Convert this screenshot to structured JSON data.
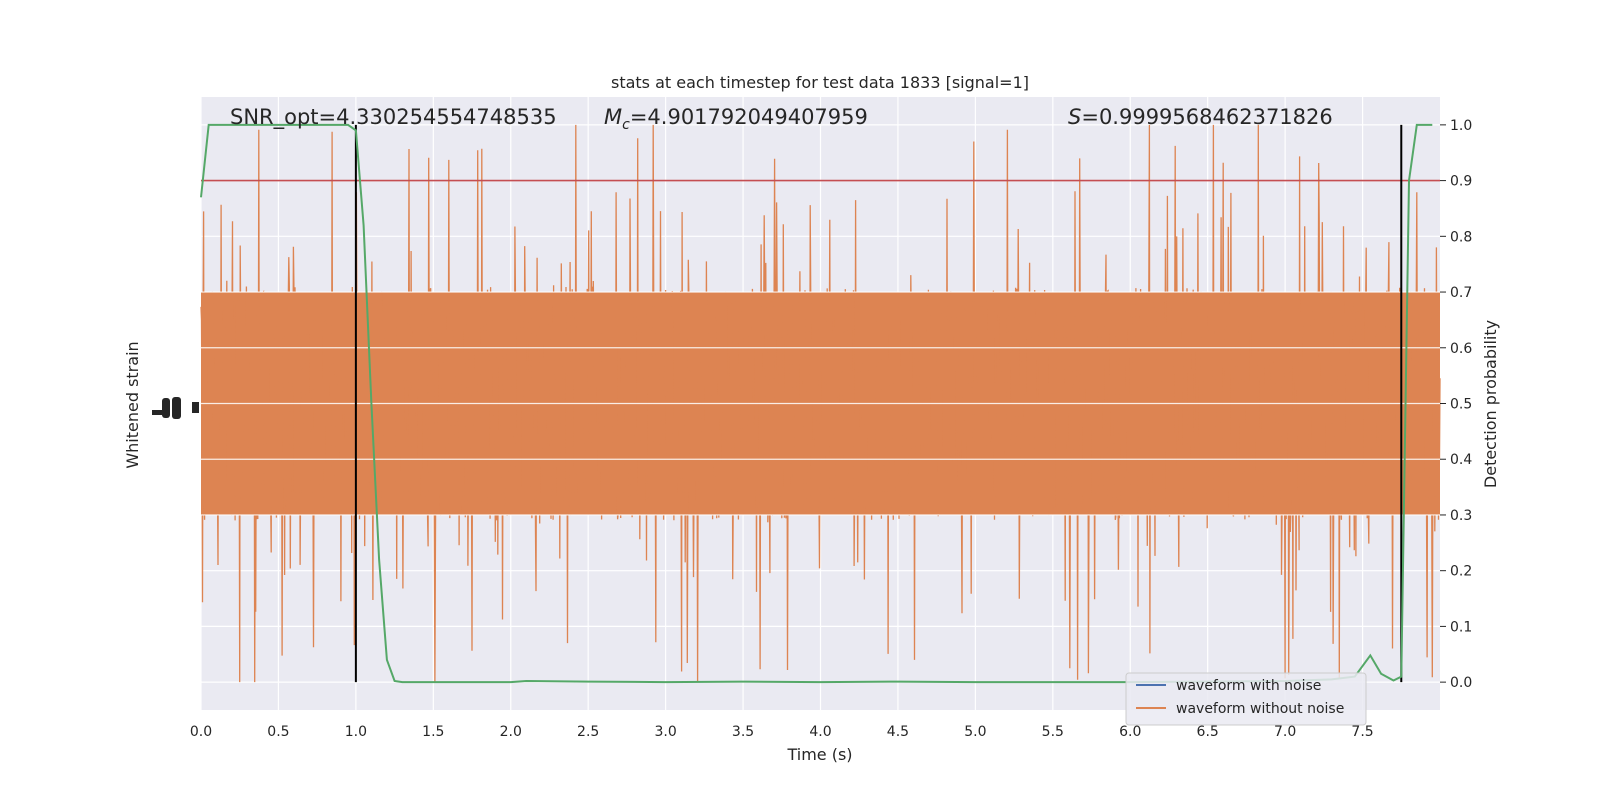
{
  "chart_data": {
    "type": "line",
    "title": "stats at each timestep for test data 1833 [signal=1]",
    "xlabel": "Time (s)",
    "ylabel_left": "Whitened strain",
    "ylabel_right": "Detection probability",
    "xlim": [
      0.0,
      8.0
    ],
    "ylim_right": [
      -0.05,
      1.05
    ],
    "x_ticks": [
      "0.0",
      "0.5",
      "1.0",
      "1.5",
      "2.0",
      "2.5",
      "3.0",
      "3.5",
      "4.0",
      "4.5",
      "5.0",
      "5.5",
      "6.0",
      "6.5",
      "7.0",
      "7.5"
    ],
    "y_ticks_right": [
      "0.0",
      "0.1",
      "0.2",
      "0.3",
      "0.4",
      "0.5",
      "0.6",
      "0.7",
      "0.8",
      "0.9",
      "1.0"
    ],
    "grid": true,
    "annotations": {
      "snr": "SNR_opt=4.330254554748535",
      "mc_prefix": "M",
      "mc_sub": "c",
      "mc_value": "=4.901792049407959",
      "s_prefix": "S",
      "s_value": "=0.9999568462371826"
    },
    "threshold": 0.9,
    "vertical_lines_x": [
      1.0,
      7.75
    ],
    "legend": {
      "placement": "lower-right",
      "entries": [
        "waveform with noise",
        "waveform without noise"
      ]
    },
    "series": [
      {
        "name": "waveform without noise",
        "color": "#dd8452",
        "description_level": "dense noise, core band approx 0.30-0.70 (detection-prob units)"
      },
      {
        "name": "waveform with noise",
        "color": "#4c72b0"
      },
      {
        "color": "#55a868",
        "x": [
          0.0,
          0.05,
          0.1,
          0.3,
          0.5,
          0.7,
          0.85,
          0.95,
          1.0,
          1.05,
          1.1,
          1.15,
          1.2,
          1.25,
          1.3,
          1.5,
          2.0,
          2.1,
          2.5,
          3.0,
          3.5,
          4.0,
          4.5,
          5.0,
          5.5,
          6.0,
          6.5,
          7.0,
          7.3,
          7.45,
          7.55,
          7.62,
          7.7,
          7.75,
          7.8,
          7.85,
          7.95
        ],
        "y": [
          0.87,
          1.0,
          1.0,
          1.0,
          1.0,
          1.0,
          1.0,
          1.0,
          0.99,
          0.82,
          0.5,
          0.22,
          0.04,
          0.002,
          0.0,
          0.0,
          0.0,
          0.002,
          0.001,
          0.0,
          0.001,
          0.0,
          0.001,
          0.0,
          0.0,
          0.0,
          0.001,
          0.002,
          0.005,
          0.01,
          0.048,
          0.015,
          0.003,
          0.01,
          0.9,
          1.0,
          1.0
        ]
      }
    ],
    "colors": {
      "plot_bg": "#eaeaf2",
      "grid": "#ffffff",
      "threshold_line": "#c44e52",
      "vline": "#000000"
    }
  }
}
